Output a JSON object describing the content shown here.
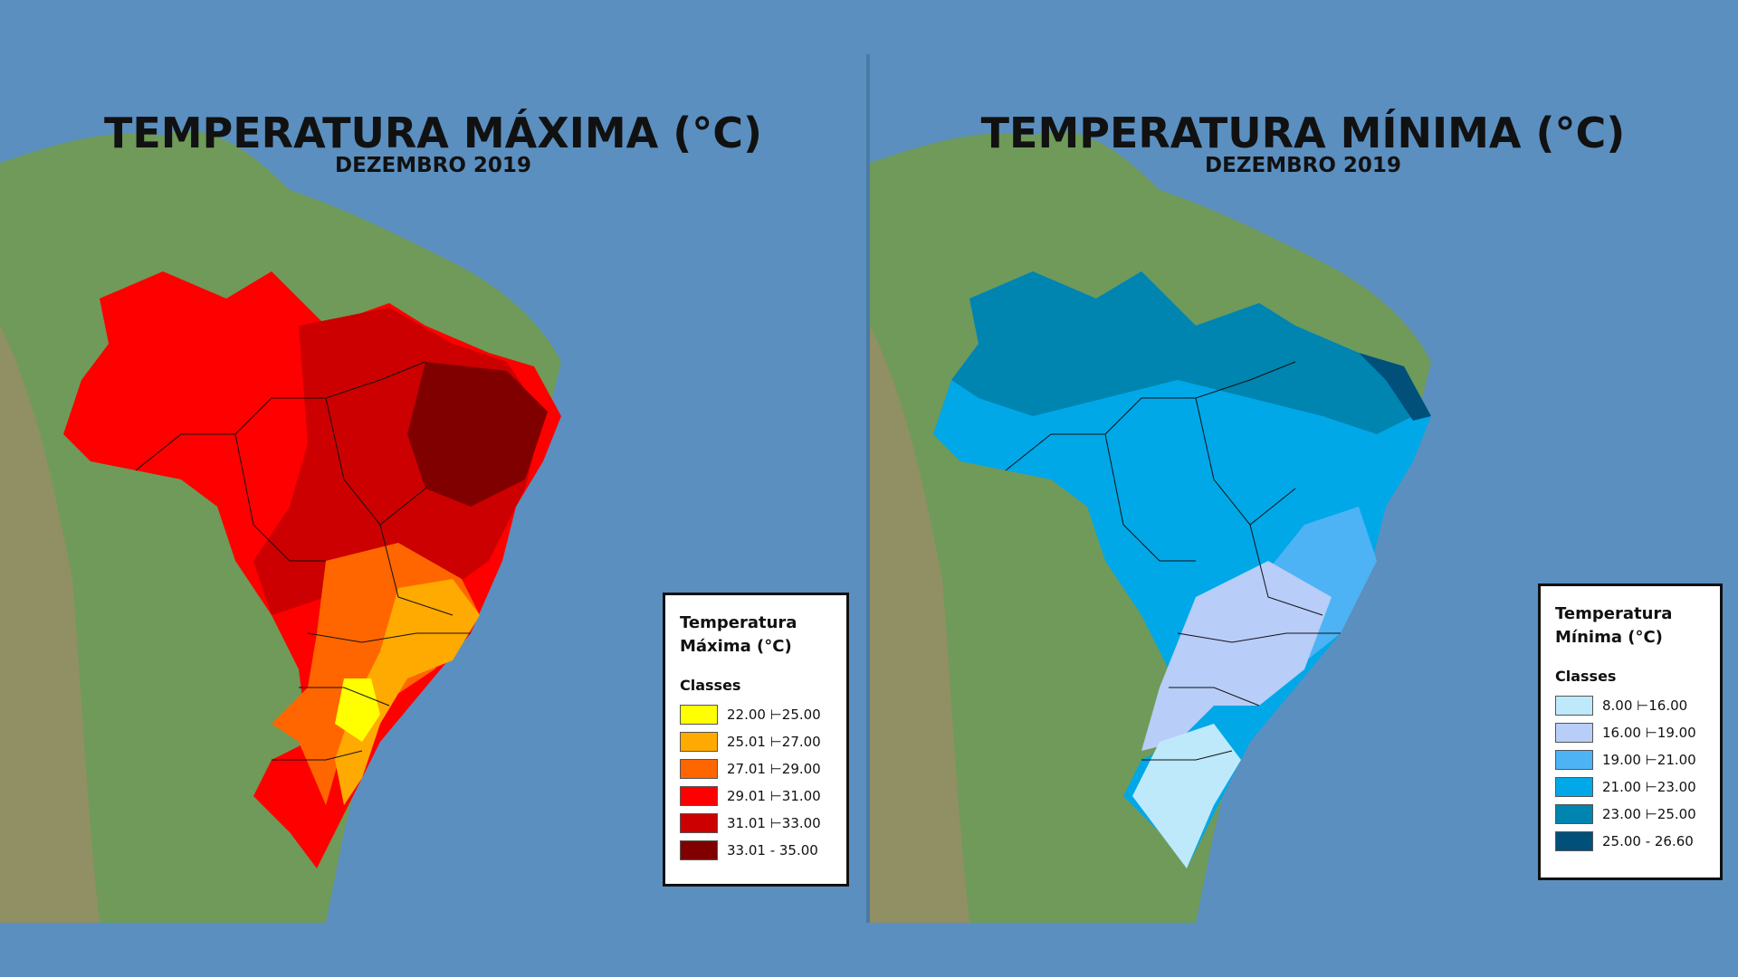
{
  "colors": {
    "ocean": "#5b8fbf",
    "land": "#6f9a5a"
  },
  "maps": [
    {
      "title": "TEMPERATURA MÁXIMA (°C)",
      "subtitle": "DEZEMBRO 2019",
      "legend_title_line1": "Temperatura",
      "legend_title_line2": "Máxima (°C)",
      "legend_classes_label": "Classes",
      "classes": [
        {
          "label": "22.00 ⊢25.00",
          "color": "#ffff00"
        },
        {
          "label": "25.01 ⊢27.00",
          "color": "#ffaa00"
        },
        {
          "label": "27.01 ⊢29.00",
          "color": "#ff6600"
        },
        {
          "label": "29.01 ⊢31.00",
          "color": "#ff0000"
        },
        {
          "label": "31.01 ⊢33.00",
          "color": "#cc0000"
        },
        {
          "label": "33.01 - 35.00",
          "color": "#800000"
        }
      ]
    },
    {
      "title": "TEMPERATURA MÍNIMA (°C)",
      "subtitle": "DEZEMBRO 2019",
      "legend_title_line1": "Temperatura",
      "legend_title_line2": "Mínima (°C)",
      "legend_classes_label": "Classes",
      "classes": [
        {
          "label": "8.00 ⊢16.00",
          "color": "#bde9fb"
        },
        {
          "label": "16.00 ⊢19.00",
          "color": "#b8cdf8"
        },
        {
          "label": "19.00 ⊢21.00",
          "color": "#4db3f5"
        },
        {
          "label": "21.00 ⊢23.00",
          "color": "#00a8e8"
        },
        {
          "label": "23.00 ⊢25.00",
          "color": "#0084b0"
        },
        {
          "label": "25.00 - 26.60",
          "color": "#00507a"
        }
      ]
    }
  ]
}
